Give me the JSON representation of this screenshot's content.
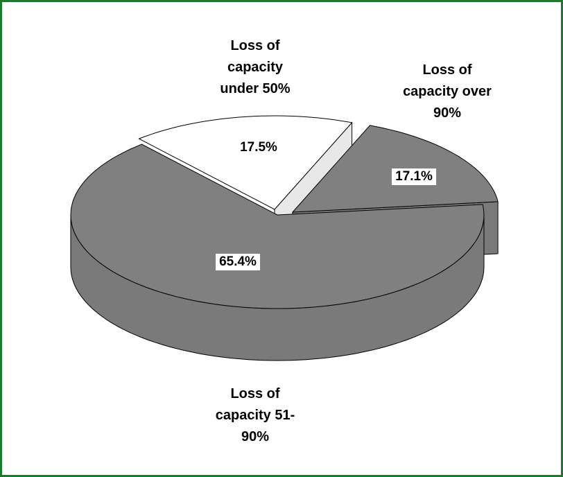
{
  "chart_data": {
    "type": "pie",
    "categories": [
      "Loss of capacity under 50%",
      "Loss of capacity over 90%",
      "Loss of capacity 51-90%"
    ],
    "values": [
      17.5,
      17.1,
      65.4
    ],
    "value_labels": [
      "17.5%",
      "17.1%",
      "65.4%"
    ],
    "colors": [
      "#ffffff",
      "#808080",
      "#808080"
    ]
  }
}
